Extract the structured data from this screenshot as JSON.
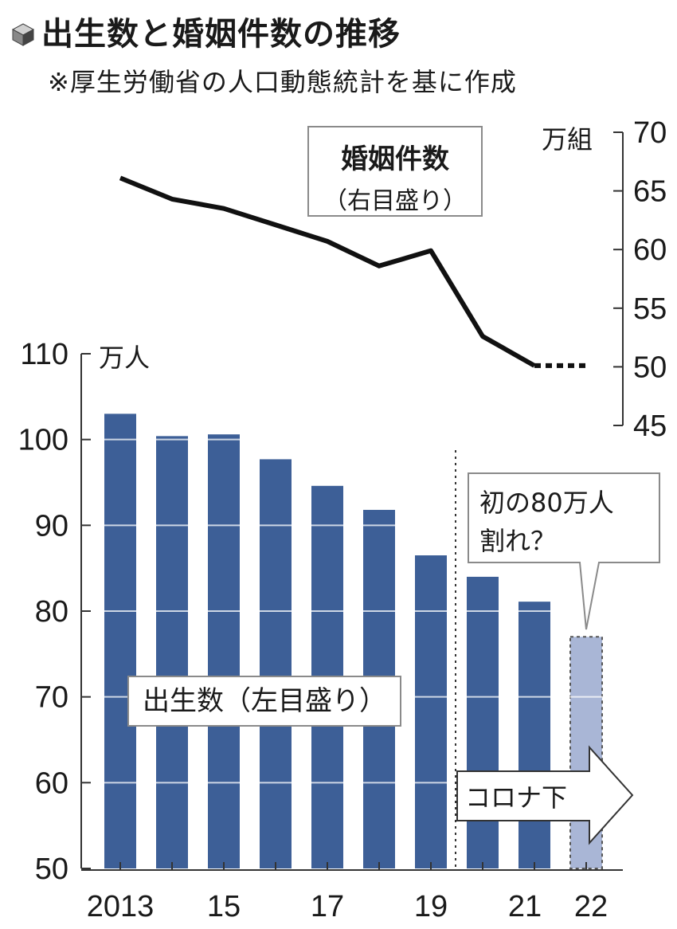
{
  "header": {
    "title": "出生数と婚姻件数の推移",
    "subtitle": "※厚生労働省の人口動態統計を基に作成"
  },
  "chart_data": {
    "type": "bar+line",
    "x_tick_labels": [
      "2013",
      "15",
      "17",
      "19",
      "21",
      "22"
    ],
    "categories": [
      "2013",
      "2014",
      "2015",
      "2016",
      "2017",
      "2018",
      "2019",
      "2020",
      "2021",
      "2022"
    ],
    "births": {
      "name": "出生数（左目盛り）",
      "unit": "万人",
      "values": [
        103.0,
        100.4,
        100.6,
        97.7,
        94.6,
        91.8,
        86.5,
        84.0,
        81.1,
        77.0
      ],
      "estimated_from_index": 9,
      "ylim": [
        50,
        110
      ],
      "ticks": [
        50,
        60,
        70,
        80,
        90,
        100,
        110
      ],
      "color": "#3d5f97",
      "estimate_color": "#a9b6d6"
    },
    "marriages": {
      "name": "婚姻件数",
      "note": "（右目盛り）",
      "unit": "万組",
      "values": [
        66.1,
        64.3,
        63.5,
        62.1,
        60.7,
        58.6,
        59.9,
        52.6,
        50.1,
        50.1
      ],
      "dotted_from_index": 8,
      "ylim": [
        45,
        70
      ],
      "ticks": [
        45,
        50,
        55,
        60,
        65,
        70
      ],
      "color": "#111111"
    },
    "annotations": {
      "callout": [
        "初の80万人",
        "割れ？"
      ],
      "corona": "コロナ下"
    },
    "grid": true
  }
}
